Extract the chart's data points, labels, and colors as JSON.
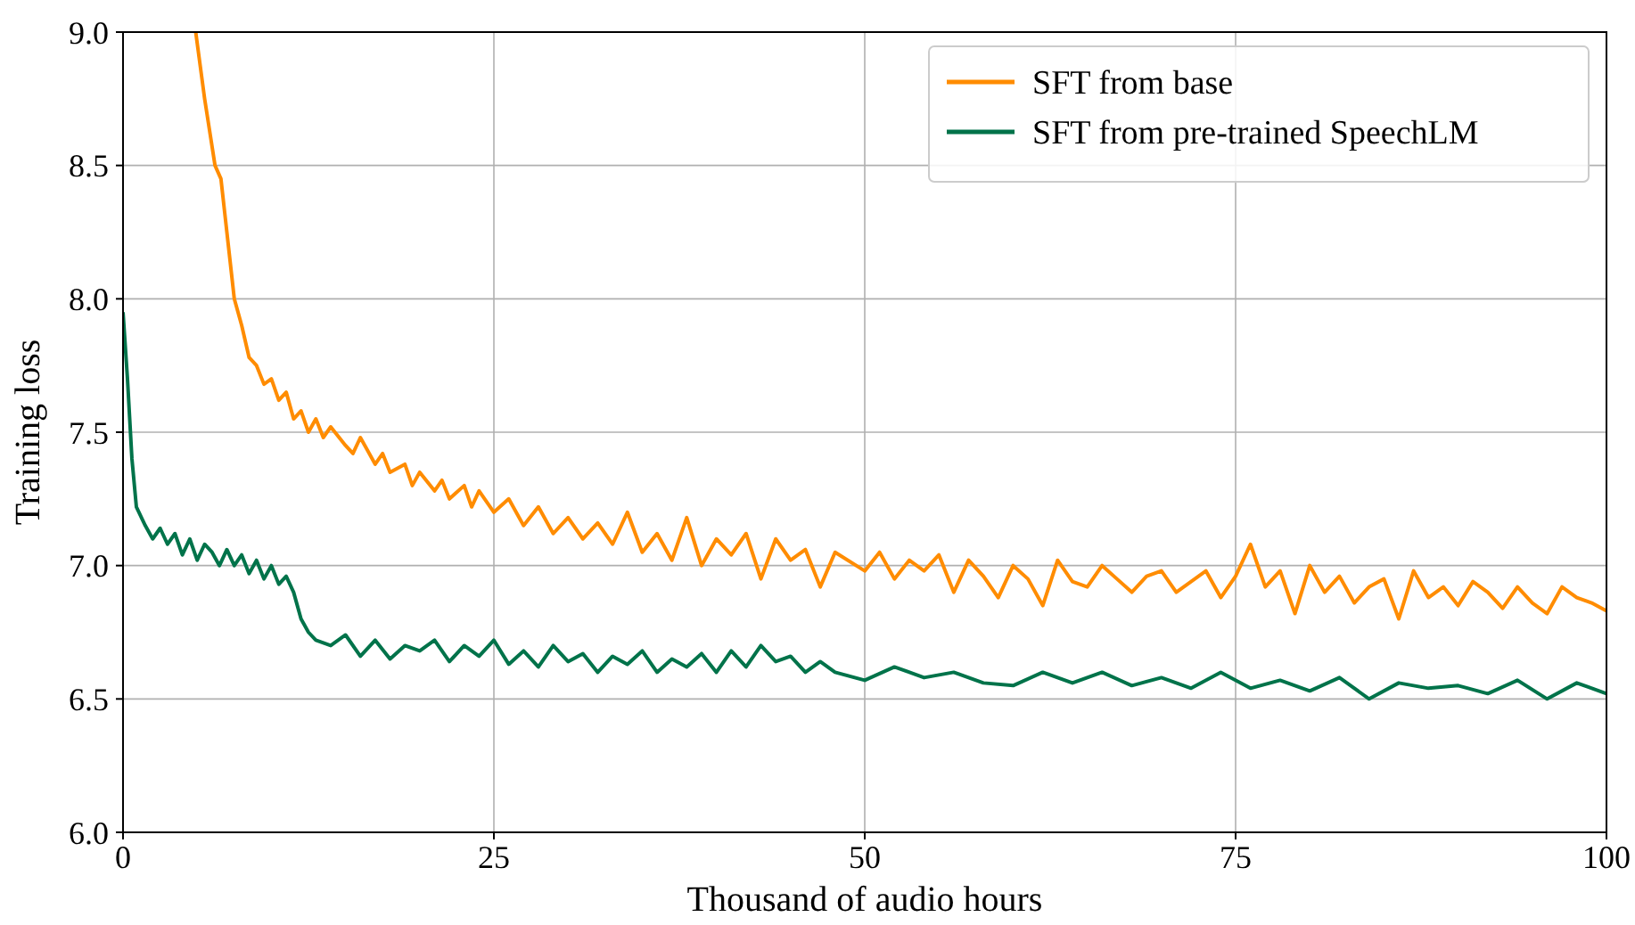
{
  "chart_data": {
    "type": "line",
    "xlabel": "Thousand of audio hours",
    "ylabel": "Training loss",
    "xlim": [
      0,
      100
    ],
    "xticks": [
      0,
      25,
      50,
      75,
      100
    ],
    "ylim": [
      6.0,
      9.0
    ],
    "yticks": [
      {
        "value": 6,
        "label": "6.0"
      },
      6.5,
      {
        "value": 7,
        "label": "7.0"
      },
      7.5,
      {
        "value": 8,
        "label": "8.0"
      },
      8.5,
      {
        "value": 9,
        "label": "9.0"
      }
    ],
    "grid": true,
    "legend": "top right",
    "marker": "none",
    "line_style": "solid",
    "series": [
      {
        "name": "SFT from base",
        "color": "#ff8c00",
        "x": [
          4.9,
          5.5,
          6.2,
          6.6,
          7,
          7.5,
          8,
          8.5,
          9,
          9.5,
          10,
          10.5,
          11,
          11.5,
          12,
          12.5,
          13,
          13.5,
          14,
          15,
          15.5,
          16,
          17,
          17.5,
          18,
          19,
          19.5,
          20,
          21,
          21.5,
          22,
          23,
          23.5,
          24,
          25,
          26,
          27,
          28,
          29,
          30,
          31,
          32,
          33,
          34,
          35,
          36,
          37,
          38,
          39,
          40,
          41,
          42,
          43,
          44,
          45,
          46,
          47,
          48,
          50,
          51,
          52,
          53,
          54,
          55,
          56,
          57,
          58,
          59,
          60,
          61,
          62,
          63,
          64,
          65,
          66,
          67,
          68,
          69,
          70,
          71,
          72,
          73,
          74,
          75,
          76,
          77,
          78,
          79,
          80,
          81,
          82,
          83,
          84,
          85,
          86,
          87,
          88,
          89,
          90,
          91,
          92,
          93,
          94,
          95,
          96,
          97,
          98,
          99,
          100
        ],
        "values": [
          9.0,
          8.75,
          8.5,
          8.45,
          8.25,
          8.0,
          7.9,
          7.78,
          7.75,
          7.68,
          7.7,
          7.62,
          7.65,
          7.55,
          7.58,
          7.5,
          7.55,
          7.48,
          7.52,
          7.45,
          7.42,
          7.48,
          7.38,
          7.42,
          7.35,
          7.38,
          7.3,
          7.35,
          7.28,
          7.32,
          7.25,
          7.3,
          7.22,
          7.28,
          7.2,
          7.25,
          7.15,
          7.22,
          7.12,
          7.18,
          7.1,
          7.16,
          7.08,
          7.2,
          7.05,
          7.12,
          7.02,
          7.18,
          7.0,
          7.1,
          7.04,
          7.12,
          6.95,
          7.1,
          7.02,
          7.06,
          6.92,
          7.05,
          6.98,
          7.05,
          6.95,
          7.02,
          6.98,
          7.04,
          6.9,
          7.02,
          6.96,
          6.88,
          7.0,
          6.95,
          6.85,
          7.02,
          6.94,
          6.92,
          7.0,
          6.95,
          6.9,
          6.96,
          6.98,
          6.9,
          6.94,
          6.98,
          6.88,
          6.96,
          7.08,
          6.92,
          6.98,
          6.82,
          7.0,
          6.9,
          6.96,
          6.86,
          6.92,
          6.95,
          6.8,
          6.98,
          6.88,
          6.92,
          6.85,
          6.94,
          6.9,
          6.84,
          6.92,
          6.86,
          6.82,
          6.92,
          6.88,
          6.86,
          6.83
        ]
      },
      {
        "name": "SFT from pre-trained SpeechLM",
        "color": "#00734a",
        "x": [
          0,
          0.3,
          0.6,
          0.9,
          1.5,
          2,
          2.5,
          3,
          3.5,
          4,
          4.5,
          5,
          5.5,
          6,
          6.5,
          7,
          7.5,
          8,
          8.5,
          9,
          9.5,
          10,
          10.5,
          11,
          11.5,
          12,
          12.5,
          13,
          14,
          15,
          16,
          17,
          18,
          19,
          20,
          21,
          22,
          23,
          24,
          25,
          26,
          27,
          28,
          29,
          30,
          31,
          32,
          33,
          34,
          35,
          36,
          37,
          38,
          39,
          40,
          41,
          42,
          43,
          44,
          45,
          46,
          47,
          48,
          50,
          52,
          54,
          56,
          58,
          60,
          62,
          64,
          66,
          68,
          70,
          72,
          74,
          76,
          78,
          80,
          82,
          84,
          86,
          88,
          90,
          92,
          94,
          96,
          98,
          100
        ],
        "values": [
          7.95,
          7.7,
          7.4,
          7.22,
          7.15,
          7.1,
          7.14,
          7.08,
          7.12,
          7.04,
          7.1,
          7.02,
          7.08,
          7.05,
          7.0,
          7.06,
          7.0,
          7.04,
          6.97,
          7.02,
          6.95,
          7.0,
          6.93,
          6.96,
          6.9,
          6.8,
          6.75,
          6.72,
          6.7,
          6.74,
          6.66,
          6.72,
          6.65,
          6.7,
          6.68,
          6.72,
          6.64,
          6.7,
          6.66,
          6.72,
          6.63,
          6.68,
          6.62,
          6.7,
          6.64,
          6.67,
          6.6,
          6.66,
          6.63,
          6.68,
          6.6,
          6.65,
          6.62,
          6.67,
          6.6,
          6.68,
          6.62,
          6.7,
          6.64,
          6.66,
          6.6,
          6.64,
          6.6,
          6.57,
          6.62,
          6.58,
          6.6,
          6.56,
          6.55,
          6.6,
          6.56,
          6.6,
          6.55,
          6.58,
          6.54,
          6.6,
          6.54,
          6.57,
          6.53,
          6.58,
          6.5,
          6.56,
          6.54,
          6.55,
          6.52,
          6.57,
          6.5,
          6.56,
          6.52
        ]
      }
    ]
  }
}
